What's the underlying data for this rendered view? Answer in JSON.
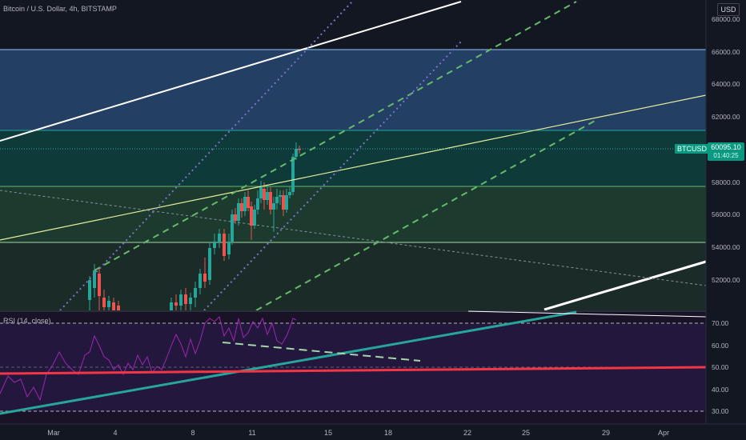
{
  "symbol_title": "Bitcoin / U.S. Dollar, 4h, BITSTAMP",
  "currency": "USD",
  "price_tag": {
    "symbol": "BTCUSD",
    "price": "60095.10",
    "countdown": "01:40:25"
  },
  "price_axis_labels": [
    "68000.00",
    "66000.00",
    "64000.00",
    "62000.00",
    "60000.00",
    "58000.00",
    "56000.00",
    "54000.00",
    "52000.00"
  ],
  "rsi": {
    "label": "RSI (14, close)",
    "axis_labels": [
      "70.00",
      "60.00",
      "50.00",
      "40.00",
      "30.00"
    ]
  },
  "time_axis_labels": [
    "Mar",
    "4",
    "8",
    "11",
    "15",
    "18",
    "22",
    "25",
    "29",
    "Apr"
  ],
  "colors": {
    "background": "#131722",
    "up_candle": "#26a69a",
    "down_candle": "#ef5350",
    "zone_blue": "#2a4a6e",
    "zone_teal": "#0f3b3a",
    "zone_green": "#1e3b2f",
    "rsi_bg": "#22163a",
    "rsi_line": "#9c27b0",
    "trend_white": "#ffffff",
    "trend_yellow": "#e6ee9c",
    "channel_green": "#66bb6a",
    "channel_purple": "#7e74c9",
    "rsi_trend_teal": "#26a69a",
    "rsi_trend_red": "#f23645",
    "price_tag": "#089981"
  },
  "chart_data": {
    "type": "candlestick",
    "symbol": "BTCUSD",
    "timeframe": "4h",
    "exchange": "BITSTAMP",
    "last_price": 60095.1,
    "y_axis": {
      "unit": "USD"
    },
    "horizontal_levels": [
      66150,
      61200,
      57750,
      54250
    ],
    "rsi": {
      "period": 14,
      "source": "close",
      "levels": [
        70,
        50,
        30
      ]
    }
  }
}
